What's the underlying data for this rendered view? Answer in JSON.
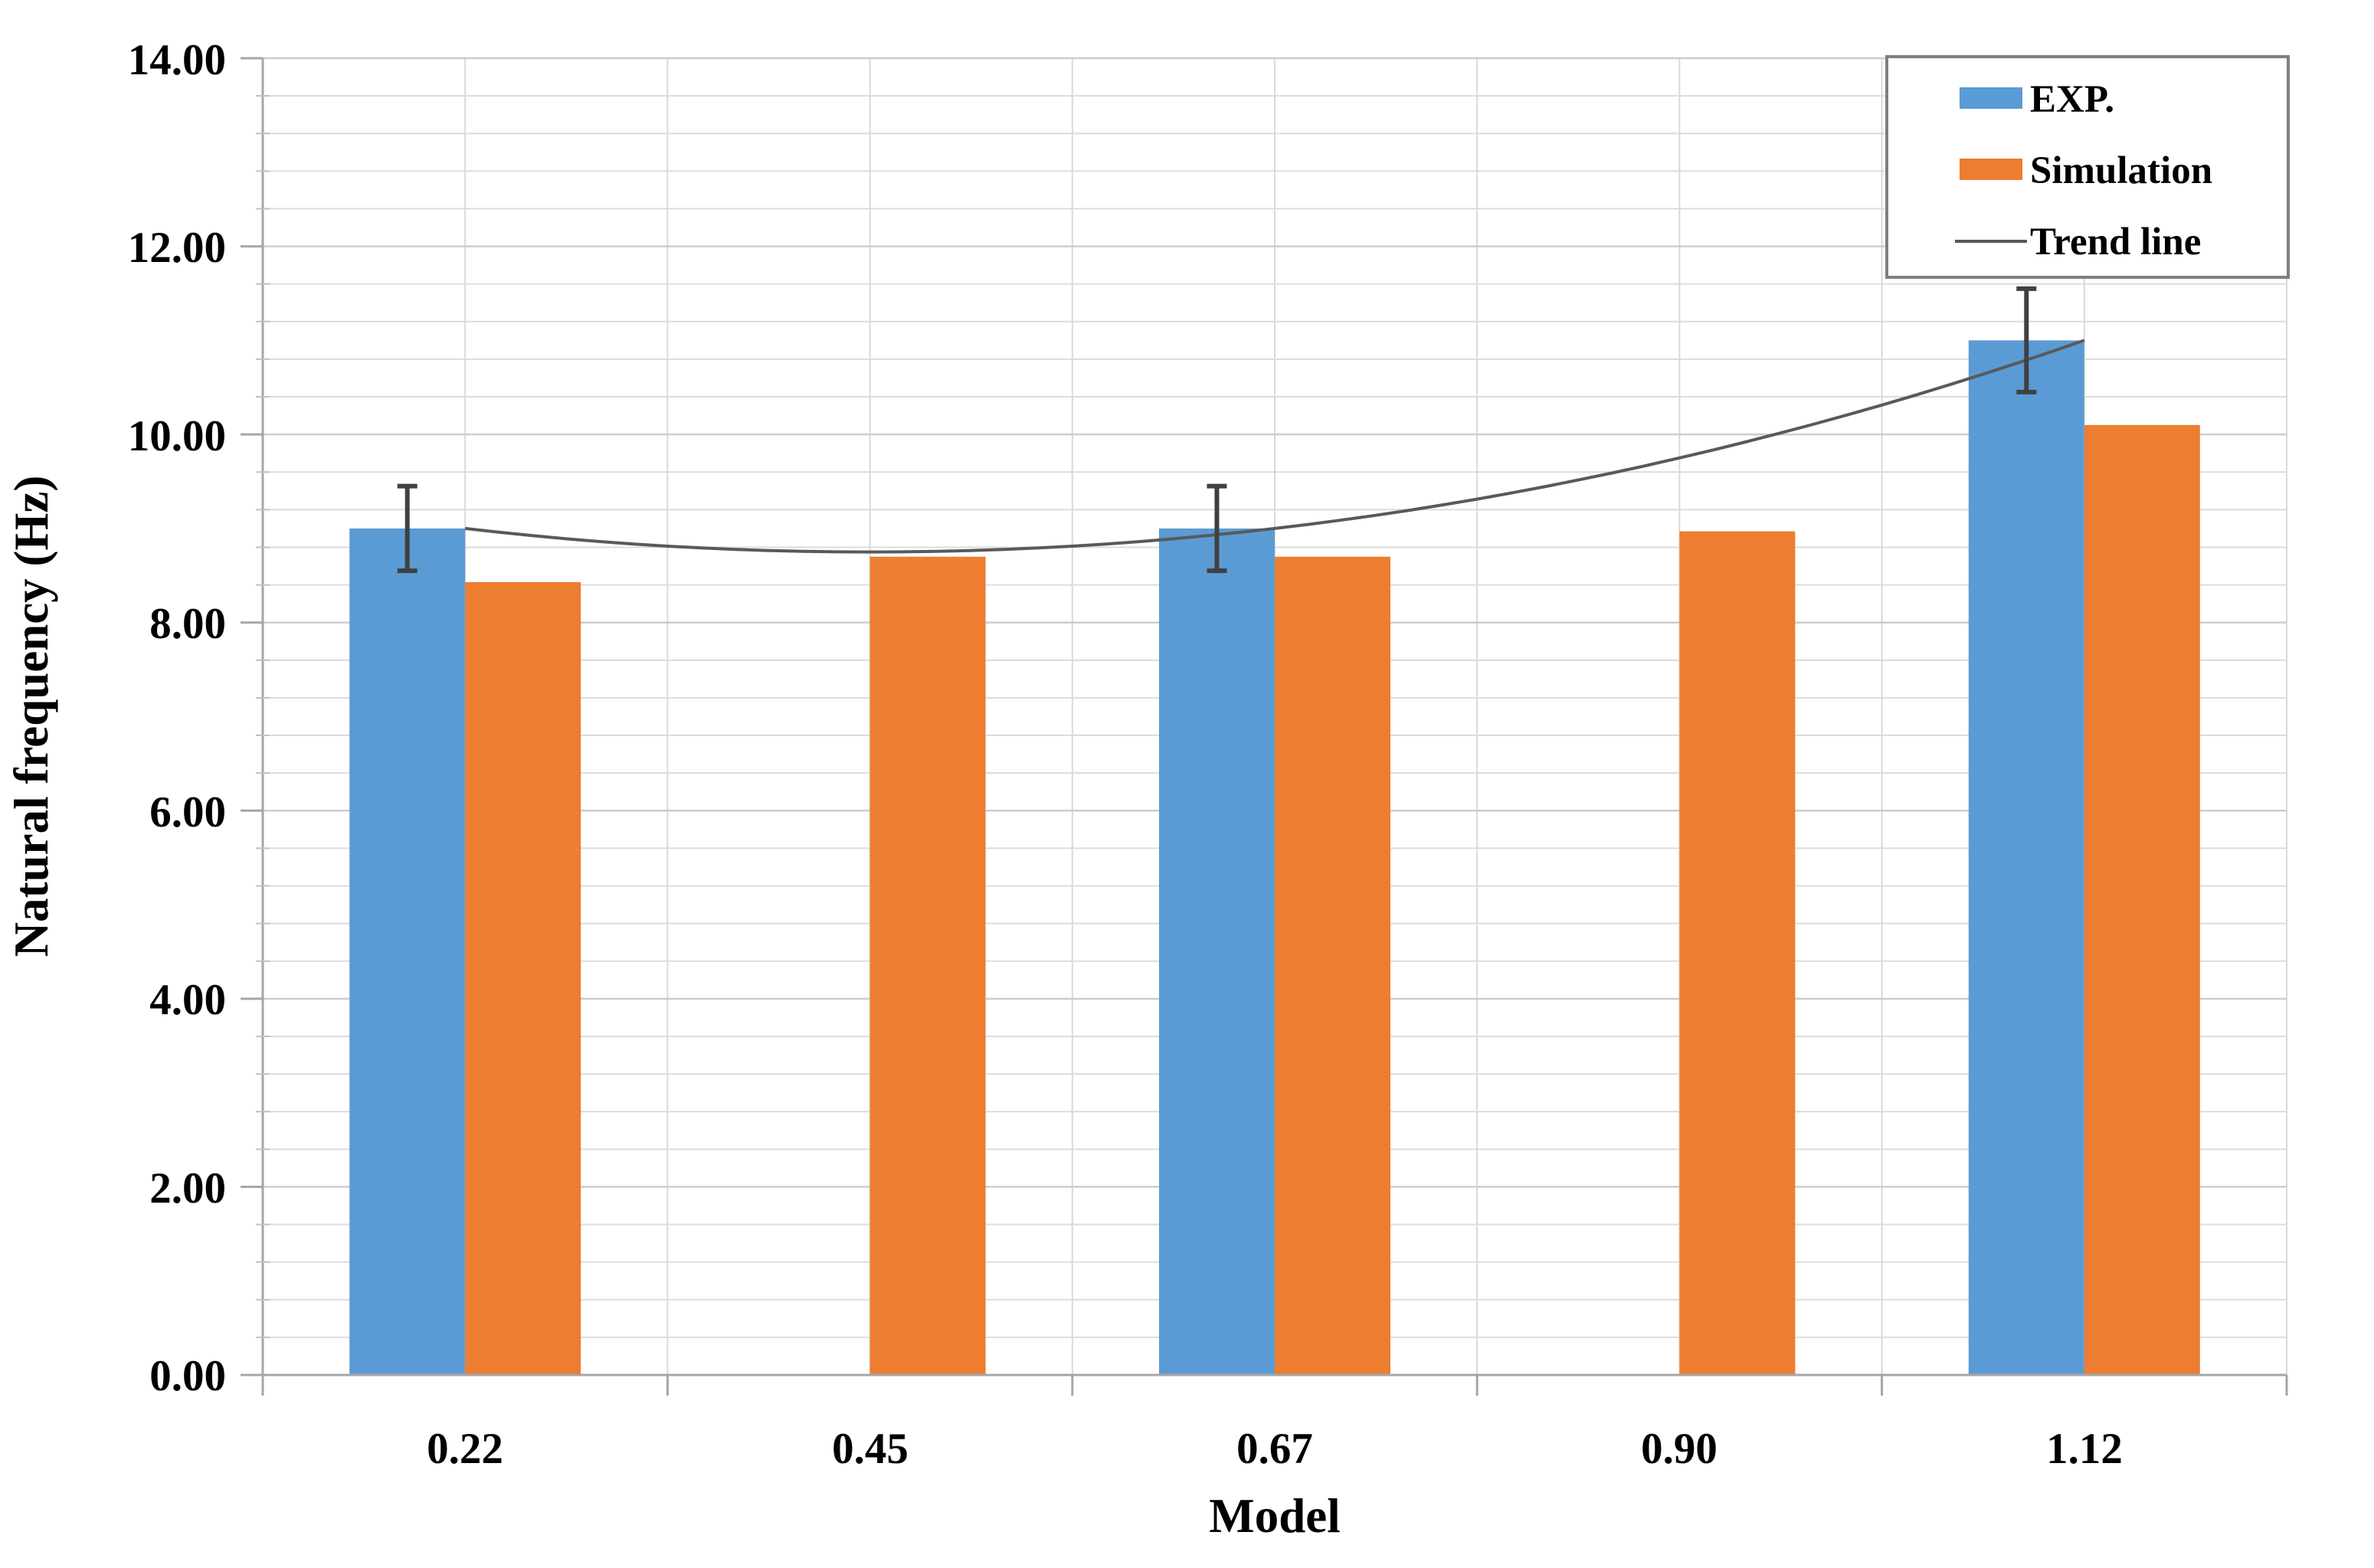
{
  "chart_data": {
    "type": "bar",
    "title": "",
    "xlabel": "Model",
    "ylabel": "Natural frequency (Hz)",
    "categories": [
      "0.22",
      "0.45",
      "0.67",
      "0.90",
      "1.12"
    ],
    "series": [
      {
        "name": "EXP.",
        "color": "#5B9BD5",
        "values": [
          9.0,
          null,
          9.0,
          null,
          11.0
        ],
        "error_bars": [
          0.45,
          null,
          0.45,
          null,
          0.55
        ]
      },
      {
        "name": "Simulation",
        "color": "#ED7D31",
        "values": [
          8.43,
          8.7,
          8.7,
          8.97,
          10.1
        ],
        "error_bars": [
          null,
          null,
          null,
          null,
          null
        ]
      }
    ],
    "trend_line": {
      "name": "Trend line",
      "color": "#595959",
      "fit": "quadratic",
      "through_x": [
        0.22,
        0.67,
        1.12
      ],
      "through_y": [
        9.0,
        9.0,
        11.0
      ],
      "x_numeric_range": [
        0.22,
        1.12
      ]
    },
    "y_axis": {
      "min": 0,
      "max": 14,
      "major_unit": 2,
      "minor_unit": 0.4,
      "tick_labels": [
        "0.00",
        "2.00",
        "4.00",
        "6.00",
        "8.00",
        "10.00",
        "12.00",
        "14.00"
      ]
    },
    "legend": {
      "position": "top-right",
      "entries": [
        "EXP.",
        "Simulation",
        "Trend line"
      ]
    },
    "grid": {
      "horizontal": true,
      "vertical": true
    },
    "colors": {
      "background": "#FFFFFF",
      "grid_minor": "#DCDCDC",
      "grid_major": "#CDCDCD",
      "grid_vertical": "#D9D9D9",
      "axis_line": "#A6A6A6",
      "error_bar": "#404040",
      "legend_border": "#7F7F7F",
      "text": "#000000"
    }
  }
}
